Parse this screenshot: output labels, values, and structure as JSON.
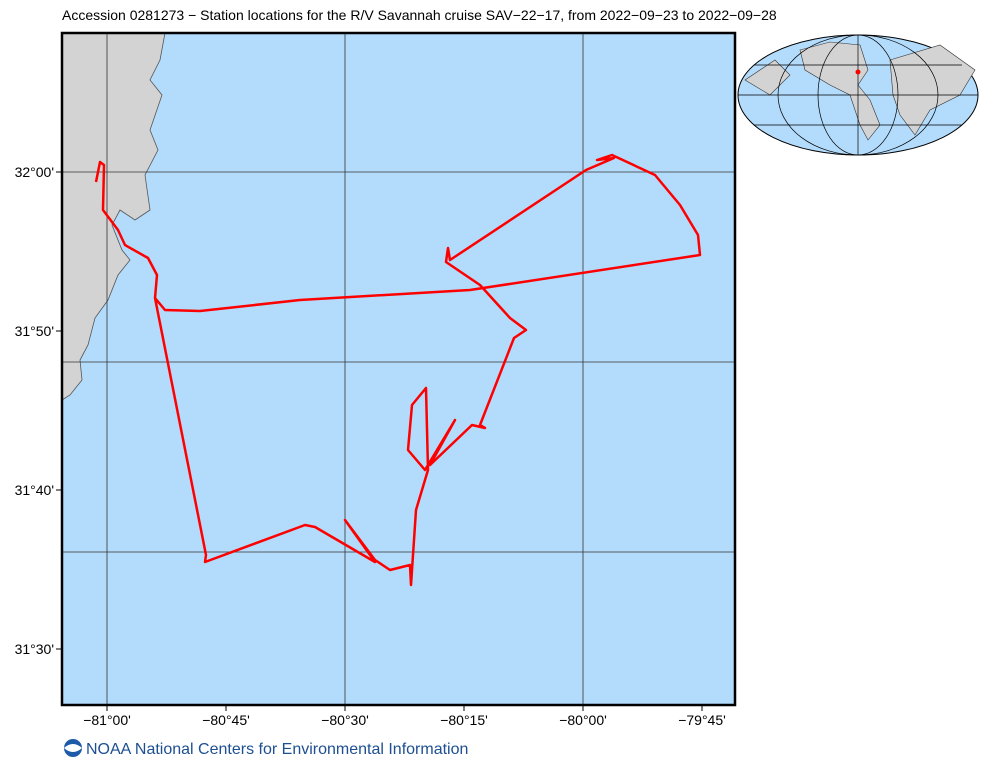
{
  "header": {
    "title": "Accession 0281273 − Station locations for the R/V Savannah cruise SAV−22−17, from 2022−09−23 to 2022−09−28"
  },
  "map": {
    "x_labels": [
      "−81°00'",
      "−80°45'",
      "−80°30'",
      "−80°15'",
      "−80°00'",
      "−79°45'"
    ],
    "y_labels": [
      "32°00'",
      "31°50'",
      "31°40'",
      "31°30'"
    ]
  },
  "footer": {
    "text": "NOAA National Centers for Environmental Information"
  }
}
